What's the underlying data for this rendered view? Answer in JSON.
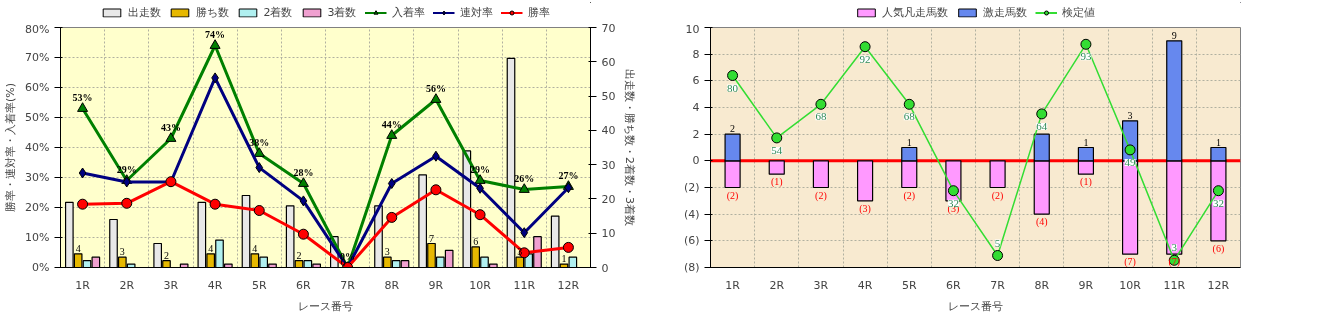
{
  "chart_data": [
    {
      "type": "bar",
      "categories": [
        "1R",
        "2R",
        "3R",
        "4R",
        "5R",
        "6R",
        "7R",
        "8R",
        "9R",
        "10R",
        "11R",
        "12R"
      ],
      "xlabel": "レース番号",
      "ylabel": "勝率・連対率・入着率(%)",
      "y2label": "出走数・勝ち数・2着数・3着数",
      "ylim": [
        0,
        80
      ],
      "yticks": [
        {
          "value": 0,
          "label": "0%"
        },
        {
          "value": 10,
          "label": "10%"
        },
        {
          "value": 20,
          "label": "20%"
        },
        {
          "value": 30,
          "label": "30%"
        },
        {
          "value": 40,
          "label": "40%"
        },
        {
          "value": 50,
          "label": "50%"
        },
        {
          "value": 60,
          "label": "60%"
        },
        {
          "value": 70,
          "label": "70%"
        },
        {
          "value": 80,
          "label": "80%"
        }
      ],
      "y2lim": [
        0,
        70
      ],
      "y2ticks": [
        0,
        10,
        20,
        30,
        40,
        50,
        60,
        70
      ],
      "grid": true,
      "legend": "top",
      "series": [
        {
          "name": "出走数",
          "type": "bar",
          "axis": "y2",
          "color": "#e8e8e8",
          "values": [
            19,
            14,
            7,
            19,
            21,
            18,
            9,
            18,
            27,
            34,
            61,
            15
          ]
        },
        {
          "name": "勝ち数",
          "type": "bar",
          "axis": "y2",
          "color": "#e6b800",
          "values": [
            4,
            3,
            2,
            4,
            4,
            2,
            0,
            3,
            7,
            6,
            3,
            1
          ],
          "data_labels": true
        },
        {
          "name": "2着数",
          "type": "bar",
          "axis": "y2",
          "color": "#b0f0f0",
          "values": [
            2,
            1,
            0,
            8,
            3,
            2,
            0,
            2,
            3,
            3,
            4,
            3
          ]
        },
        {
          "name": "3着数",
          "type": "bar",
          "axis": "y2",
          "color": "#f0a0d0",
          "values": [
            3,
            0,
            1,
            1,
            1,
            1,
            0,
            2,
            5,
            1,
            9,
            0
          ]
        },
        {
          "name": "入着率",
          "type": "line",
          "color": "#008000",
          "marker": "triangle",
          "values": [
            53,
            29,
            43,
            74,
            38,
            28,
            0,
            44,
            56,
            29,
            26,
            27
          ],
          "value_labels": [
            "53%",
            "29%",
            "43%",
            "74%",
            "38%",
            "28%",
            "0%",
            "44%",
            "56%",
            "29%",
            "26%",
            "27%"
          ]
        },
        {
          "name": "連対率",
          "type": "line",
          "color": "#000080",
          "marker": "diamond",
          "values": [
            31.5,
            28.5,
            28.5,
            63.2,
            33.3,
            22.2,
            0,
            28.0,
            37.1,
            26.4,
            11.6,
            26.6
          ]
        },
        {
          "name": "勝率",
          "type": "line",
          "color": "#ff0000",
          "marker": "circle",
          "values": [
            21.1,
            21.4,
            28.6,
            21.1,
            19.0,
            11.1,
            0,
            16.7,
            25.9,
            17.6,
            4.9,
            6.7
          ]
        }
      ]
    },
    {
      "type": "bar",
      "stacked": true,
      "categories": [
        "1R",
        "2R",
        "3R",
        "4R",
        "5R",
        "6R",
        "7R",
        "8R",
        "9R",
        "10R",
        "11R",
        "12R"
      ],
      "xlabel": "レース番号",
      "ylim": [
        -8,
        10
      ],
      "yticks": [
        {
          "value": -8,
          "label": "(8)"
        },
        {
          "value": -6,
          "label": "(6)"
        },
        {
          "value": -4,
          "label": "(4)"
        },
        {
          "value": -2,
          "label": "(2)"
        },
        0,
        2,
        4,
        6,
        8,
        10
      ],
      "y2lim": [
        0,
        100
      ],
      "grid": true,
      "legend": "top",
      "ref_lines": [
        {
          "axis": "y",
          "value": 0,
          "color": "#ff0000"
        }
      ],
      "series": [
        {
          "name": "人気凡走馬数",
          "type": "bar",
          "color": "#ff99ff",
          "values": [
            -2,
            -1,
            -2,
            -3,
            -2,
            -3,
            -2,
            -4,
            -1,
            -7,
            -7,
            -6
          ],
          "value_labels": [
            "(2)",
            "(1)",
            "(2)",
            "(3)",
            "(2)",
            "(3)",
            "(2)",
            "(4)",
            "(1)",
            "(7)",
            "(7)",
            "(6)"
          ]
        },
        {
          "name": "激走馬数",
          "type": "bar",
          "color": "#6688ee",
          "values": [
            2,
            0,
            0,
            0,
            1,
            0,
            0,
            2,
            1,
            3,
            9,
            1
          ],
          "value_labels": [
            "2",
            null,
            null,
            null,
            "1",
            null,
            null,
            null,
            "1",
            "3",
            "9",
            "1"
          ]
        },
        {
          "name": "検定値",
          "type": "line",
          "axis": "y2",
          "color": "#33dd33",
          "marker": "circle",
          "values": [
            80,
            54,
            68,
            92,
            68,
            32,
            5,
            64,
            93,
            49,
            3,
            32
          ],
          "data_labels": true
        }
      ]
    }
  ]
}
